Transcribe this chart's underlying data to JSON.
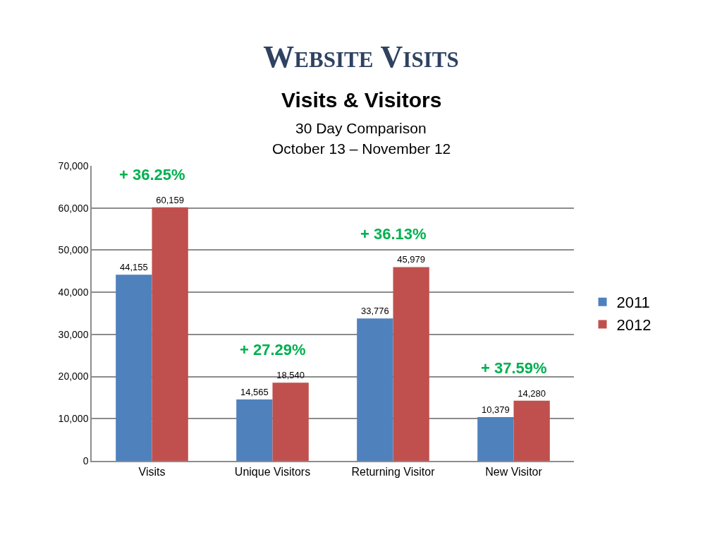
{
  "chart_data": {
    "type": "bar",
    "title": "Website Visits",
    "subtitle": "Visits & Visitors\n30 Day Comparison\nOctober 13 – November 12",
    "categories": [
      "Visits",
      "Unique Visitors",
      "Returning Visitor",
      "New Visitor"
    ],
    "series": [
      {
        "name": "2011",
        "color": "#4f81bd",
        "values": [
          44155,
          14565,
          33776,
          10379
        ],
        "value_labels": [
          "44,155",
          "14,565",
          "33,776",
          "10,379"
        ]
      },
      {
        "name": "2012",
        "color": "#c0504d",
        "values": [
          60159,
          18540,
          45979,
          14280
        ],
        "value_labels": [
          "60,159",
          "18,540",
          "45,979",
          "14,280"
        ]
      }
    ],
    "ylim": [
      0,
      70000
    ],
    "yticks": [
      0,
      {
        "value": 10000,
        "label": "10,000"
      },
      {
        "value": 20000,
        "label": "20,000"
      },
      {
        "value": 30000,
        "label": "30,000"
      },
      {
        "value": 40000,
        "label": "40,000"
      },
      {
        "value": 50000,
        "label": "50,000"
      },
      {
        "value": 60000,
        "label": "60,000"
      },
      {
        "value": 70000,
        "label": "70,000"
      }
    ],
    "grid": "y",
    "legend": "right",
    "annotations": [
      "+ 36.25%",
      "+ 27.29%",
      "+ 36.13%",
      "+ 37.59%"
    ]
  }
}
